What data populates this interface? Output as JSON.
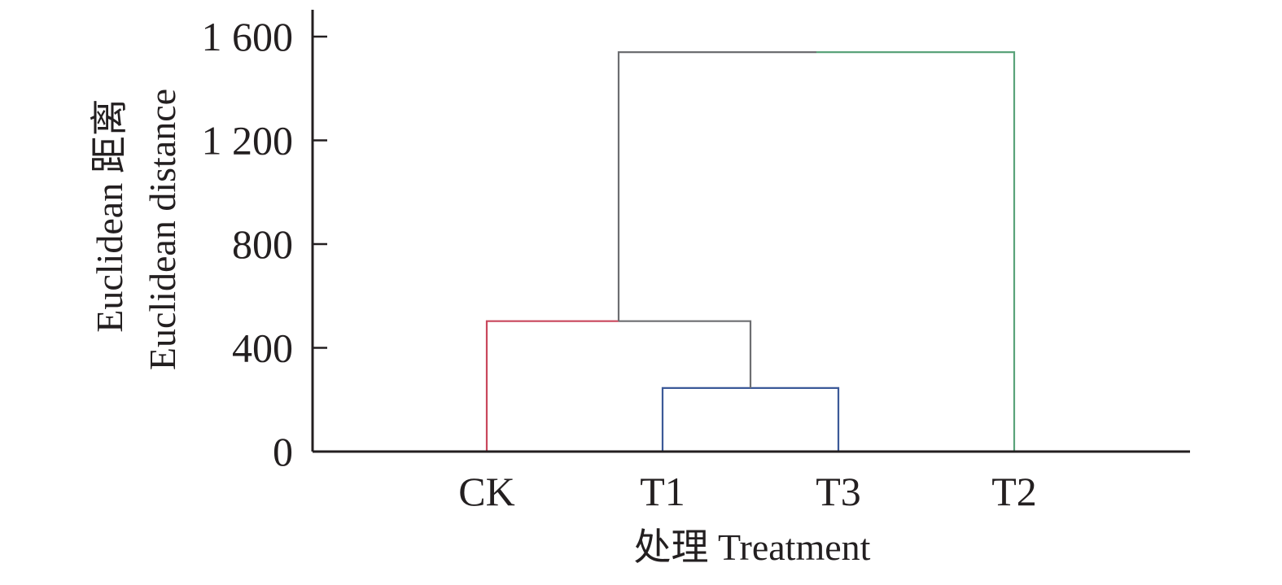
{
  "chart_data": {
    "type": "dendrogram",
    "xlabel": "处理 Treatment",
    "ylabel_lines": [
      "Euclidean 距离",
      "Euclidean distance"
    ],
    "ylim": [
      0,
      1600
    ],
    "yticks": [
      {
        "value": 0,
        "label": "0"
      },
      {
        "value": 400,
        "label": "400"
      },
      {
        "value": 800,
        "label": "800"
      },
      {
        "value": 1200,
        "label": "1 200"
      },
      {
        "value": 1600,
        "label": "1 600"
      }
    ],
    "leaves": [
      "CK",
      "T1",
      "T3",
      "T2"
    ],
    "merges": [
      {
        "left": "T1",
        "right": "T3",
        "height": 245,
        "color": "#3b5998"
      },
      {
        "left": "CK",
        "right": "T1+T3",
        "height": 503,
        "left_color": "#c9475c",
        "right_color": "#6d6e71"
      },
      {
        "left": "CK+T1+T3",
        "right": "T2",
        "height": 1540,
        "left_color": "#6d6e71",
        "right_color": "#5aa37a"
      }
    ],
    "grid": false,
    "legend": "none"
  }
}
